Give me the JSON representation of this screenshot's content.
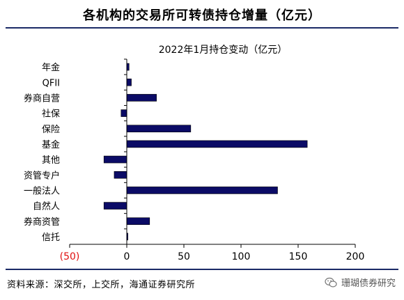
{
  "header": {
    "title": "各机构的交易所可转债持仓增量（亿元）"
  },
  "footer": {
    "source": "资料来源：深交所，上交所，海通证券研究所",
    "watermark": "珊瑚债券研究",
    "watermark_icon": "wechat-icon"
  },
  "colors": {
    "bar_fill": "#0b0b66",
    "rule": "#1a2a66",
    "negative_tick": "#e01010"
  },
  "chart_data": {
    "type": "bar",
    "orientation": "horizontal",
    "title": "2022年1月持仓变动（亿元）",
    "categories": [
      "年金",
      "QFII",
      "券商自营",
      "社保",
      "保险",
      "基金",
      "其他",
      "资管专户",
      "一般法人",
      "自然人",
      "券商资管",
      "信托"
    ],
    "values": [
      2,
      4,
      26,
      -5,
      56,
      158,
      -20,
      -11,
      132,
      -20,
      20,
      1
    ],
    "xlim": [
      -50,
      200
    ],
    "xticks": [
      -50,
      0,
      50,
      100,
      150,
      200
    ],
    "xtick_labels": [
      "(50)",
      "0",
      "50",
      "100",
      "150",
      "200"
    ],
    "grid": false,
    "legend": "none"
  }
}
